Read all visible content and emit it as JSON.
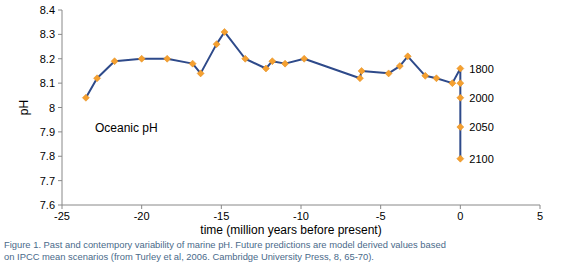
{
  "chart_data": {
    "type": "line",
    "x_label": "time (million years before present)",
    "y_label": "pH",
    "annotation": "Oceanic pH",
    "caption": [
      "Figure 1. Past and contempory variability of marine pH. Future predictions are model derived values based",
      "on IPCC mean scenarios (from Turley et al, 2006. Cambridge University Press, 8, 65-70)."
    ],
    "x": [
      -23.5,
      -22.8,
      -21.7,
      -20.0,
      -18.4,
      -16.8,
      -16.3,
      -15.3,
      -14.8,
      -13.5,
      -12.2,
      -11.8,
      -11.0,
      -9.8,
      -6.3,
      -6.2,
      -4.5,
      -3.8,
      -3.3,
      -2.2,
      -1.5,
      -0.5,
      0,
      0,
      0,
      0,
      0
    ],
    "series": [
      {
        "name": "Oceanic pH",
        "color": "#2e4a8a",
        "marker": "diamond",
        "values": [
          8.04,
          8.12,
          8.19,
          8.2,
          8.2,
          8.18,
          8.14,
          8.26,
          8.31,
          8.2,
          8.16,
          8.19,
          8.18,
          8.2,
          8.12,
          8.15,
          8.14,
          8.17,
          8.21,
          8.13,
          8.12,
          8.1,
          8.16,
          8.1,
          8.04,
          7.92,
          7.79
        ],
        "point_labels": [
          null,
          null,
          null,
          null,
          null,
          null,
          null,
          null,
          null,
          null,
          null,
          null,
          null,
          null,
          null,
          null,
          null,
          null,
          null,
          null,
          null,
          null,
          "1800",
          null,
          "2000",
          "2050",
          "2100"
        ]
      }
    ],
    "xlim": [
      -25,
      5
    ],
    "xticks": [
      -25,
      -20,
      -15,
      -10,
      -5,
      0,
      5
    ],
    "ylim": [
      7.6,
      8.4
    ],
    "yticks": [
      7.6,
      7.7,
      7.8,
      7.9,
      8,
      8.1,
      8.2,
      8.3,
      8.4
    ],
    "grid": false
  }
}
